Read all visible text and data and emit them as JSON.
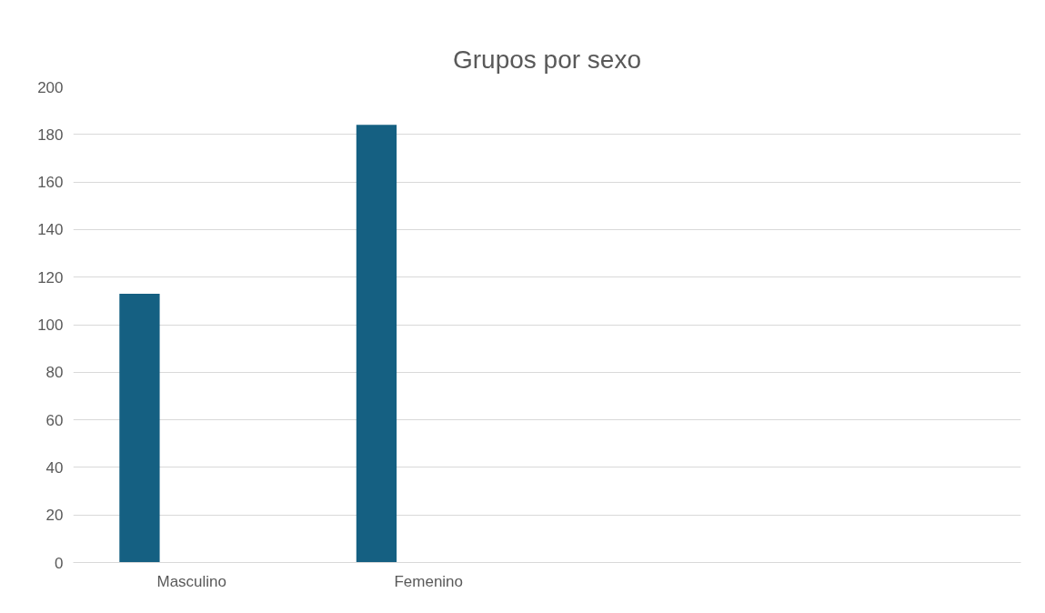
{
  "chart_data": {
    "type": "bar",
    "title": "Grupos por sexo",
    "categories": [
      "Masculino",
      "Femenino",
      null,
      null
    ],
    "series": [
      {
        "color": "#156082",
        "values": [
          113,
          184,
          null,
          null
        ]
      }
    ],
    "ylim": [
      0,
      200
    ],
    "yticks": [
      0,
      20,
      40,
      60,
      80,
      100,
      120,
      140,
      160,
      180,
      200
    ],
    "grid": "y"
  }
}
